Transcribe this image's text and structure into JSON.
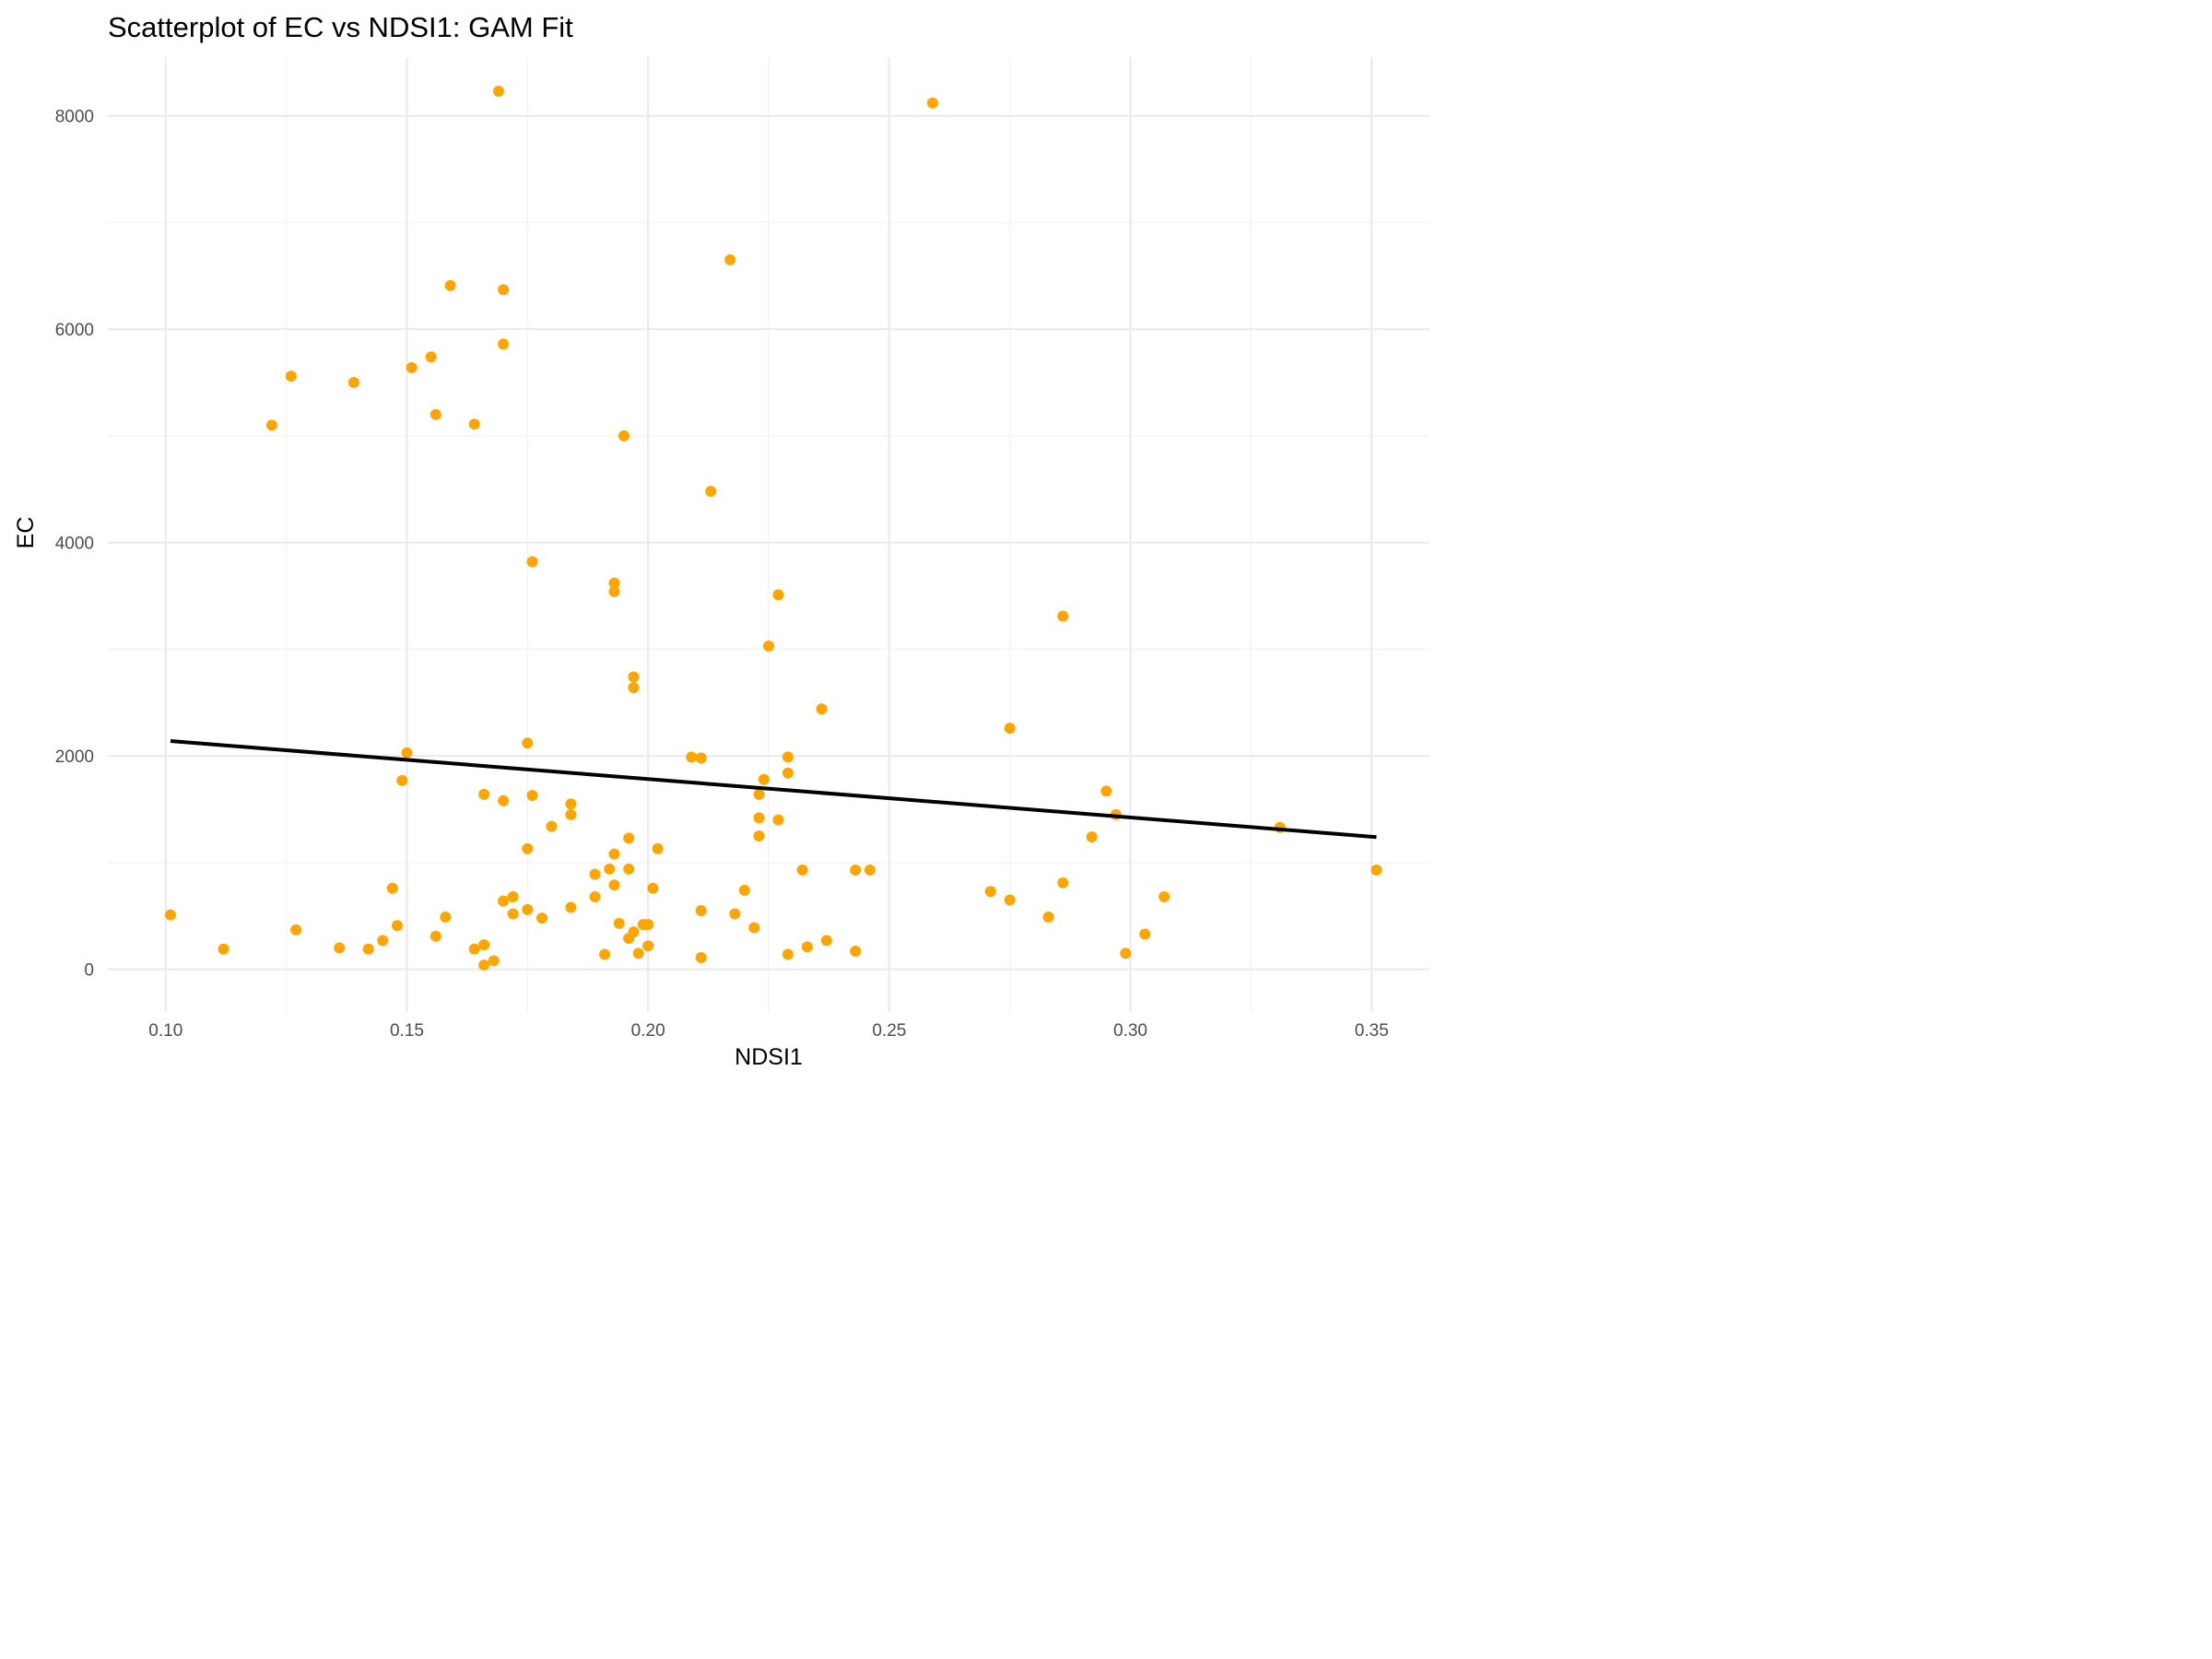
{
  "chart_data": {
    "type": "scatter",
    "title": "Scatterplot of EC vs NDSI1: GAM Fit",
    "xlabel": "NDSI1",
    "ylabel": "EC",
    "xlim": [
      0.088,
      0.362
    ],
    "ylim": [
      -400,
      8550
    ],
    "x_ticks": [
      0.1,
      0.15,
      0.2,
      0.25,
      0.3,
      0.35
    ],
    "x_tick_labels": [
      "0.10",
      "0.15",
      "0.20",
      "0.25",
      "0.30",
      "0.35"
    ],
    "y_ticks": [
      0,
      2000,
      4000,
      6000,
      8000
    ],
    "y_tick_labels": [
      "0",
      "2000",
      "4000",
      "6000",
      "8000"
    ],
    "grid": true,
    "point_color": "#ffa500",
    "line_color": "#000000",
    "points": [
      {
        "x": 0.169,
        "y": 8230
      },
      {
        "x": 0.259,
        "y": 8120
      },
      {
        "x": 0.217,
        "y": 6650
      },
      {
        "x": 0.159,
        "y": 6410
      },
      {
        "x": 0.17,
        "y": 6370
      },
      {
        "x": 0.17,
        "y": 5860
      },
      {
        "x": 0.155,
        "y": 5740
      },
      {
        "x": 0.151,
        "y": 5640
      },
      {
        "x": 0.126,
        "y": 5560
      },
      {
        "x": 0.139,
        "y": 5500
      },
      {
        "x": 0.156,
        "y": 5200
      },
      {
        "x": 0.164,
        "y": 5110
      },
      {
        "x": 0.122,
        "y": 5100
      },
      {
        "x": 0.195,
        "y": 5000
      },
      {
        "x": 0.213,
        "y": 4480
      },
      {
        "x": 0.176,
        "y": 3820
      },
      {
        "x": 0.193,
        "y": 3620
      },
      {
        "x": 0.193,
        "y": 3540
      },
      {
        "x": 0.227,
        "y": 3510
      },
      {
        "x": 0.286,
        "y": 3310
      },
      {
        "x": 0.225,
        "y": 3030
      },
      {
        "x": 0.197,
        "y": 2740
      },
      {
        "x": 0.197,
        "y": 2640
      },
      {
        "x": 0.236,
        "y": 2440
      },
      {
        "x": 0.275,
        "y": 2260
      },
      {
        "x": 0.175,
        "y": 2120
      },
      {
        "x": 0.15,
        "y": 2030
      },
      {
        "x": 0.209,
        "y": 1990
      },
      {
        "x": 0.211,
        "y": 1980
      },
      {
        "x": 0.229,
        "y": 1990
      },
      {
        "x": 0.229,
        "y": 1840
      },
      {
        "x": 0.149,
        "y": 1770
      },
      {
        "x": 0.224,
        "y": 1780
      },
      {
        "x": 0.295,
        "y": 1670
      },
      {
        "x": 0.166,
        "y": 1640
      },
      {
        "x": 0.176,
        "y": 1630
      },
      {
        "x": 0.223,
        "y": 1640
      },
      {
        "x": 0.17,
        "y": 1580
      },
      {
        "x": 0.184,
        "y": 1550
      },
      {
        "x": 0.184,
        "y": 1450
      },
      {
        "x": 0.297,
        "y": 1450
      },
      {
        "x": 0.223,
        "y": 1420
      },
      {
        "x": 0.227,
        "y": 1400
      },
      {
        "x": 0.18,
        "y": 1340
      },
      {
        "x": 0.331,
        "y": 1330
      },
      {
        "x": 0.196,
        "y": 1230
      },
      {
        "x": 0.223,
        "y": 1250
      },
      {
        "x": 0.292,
        "y": 1240
      },
      {
        "x": 0.175,
        "y": 1130
      },
      {
        "x": 0.202,
        "y": 1130
      },
      {
        "x": 0.193,
        "y": 1080
      },
      {
        "x": 0.192,
        "y": 940
      },
      {
        "x": 0.196,
        "y": 940
      },
      {
        "x": 0.189,
        "y": 890
      },
      {
        "x": 0.232,
        "y": 930
      },
      {
        "x": 0.243,
        "y": 930
      },
      {
        "x": 0.246,
        "y": 930
      },
      {
        "x": 0.351,
        "y": 930
      },
      {
        "x": 0.286,
        "y": 810
      },
      {
        "x": 0.193,
        "y": 790
      },
      {
        "x": 0.147,
        "y": 760
      },
      {
        "x": 0.201,
        "y": 760
      },
      {
        "x": 0.22,
        "y": 740
      },
      {
        "x": 0.271,
        "y": 730
      },
      {
        "x": 0.189,
        "y": 680
      },
      {
        "x": 0.172,
        "y": 680
      },
      {
        "x": 0.307,
        "y": 680
      },
      {
        "x": 0.275,
        "y": 650
      },
      {
        "x": 0.17,
        "y": 640
      },
      {
        "x": 0.184,
        "y": 580
      },
      {
        "x": 0.175,
        "y": 560
      },
      {
        "x": 0.211,
        "y": 550
      },
      {
        "x": 0.101,
        "y": 510
      },
      {
        "x": 0.172,
        "y": 520
      },
      {
        "x": 0.218,
        "y": 520
      },
      {
        "x": 0.158,
        "y": 490
      },
      {
        "x": 0.178,
        "y": 480
      },
      {
        "x": 0.283,
        "y": 490
      },
      {
        "x": 0.194,
        "y": 430
      },
      {
        "x": 0.199,
        "y": 420
      },
      {
        "x": 0.2,
        "y": 420
      },
      {
        "x": 0.148,
        "y": 410
      },
      {
        "x": 0.222,
        "y": 390
      },
      {
        "x": 0.127,
        "y": 370
      },
      {
        "x": 0.197,
        "y": 350
      },
      {
        "x": 0.303,
        "y": 330
      },
      {
        "x": 0.156,
        "y": 310
      },
      {
        "x": 0.196,
        "y": 290
      },
      {
        "x": 0.145,
        "y": 270
      },
      {
        "x": 0.237,
        "y": 270
      },
      {
        "x": 0.166,
        "y": 230
      },
      {
        "x": 0.2,
        "y": 220
      },
      {
        "x": 0.233,
        "y": 210
      },
      {
        "x": 0.136,
        "y": 200
      },
      {
        "x": 0.112,
        "y": 190
      },
      {
        "x": 0.142,
        "y": 190
      },
      {
        "x": 0.164,
        "y": 190
      },
      {
        "x": 0.243,
        "y": 170
      },
      {
        "x": 0.198,
        "y": 150
      },
      {
        "x": 0.299,
        "y": 150
      },
      {
        "x": 0.191,
        "y": 140
      },
      {
        "x": 0.229,
        "y": 140
      },
      {
        "x": 0.211,
        "y": 110
      },
      {
        "x": 0.168,
        "y": 80
      },
      {
        "x": 0.166,
        "y": 40
      }
    ],
    "fit_line": [
      {
        "x": 0.101,
        "y": 2140
      },
      {
        "x": 0.351,
        "y": 1240
      }
    ]
  }
}
